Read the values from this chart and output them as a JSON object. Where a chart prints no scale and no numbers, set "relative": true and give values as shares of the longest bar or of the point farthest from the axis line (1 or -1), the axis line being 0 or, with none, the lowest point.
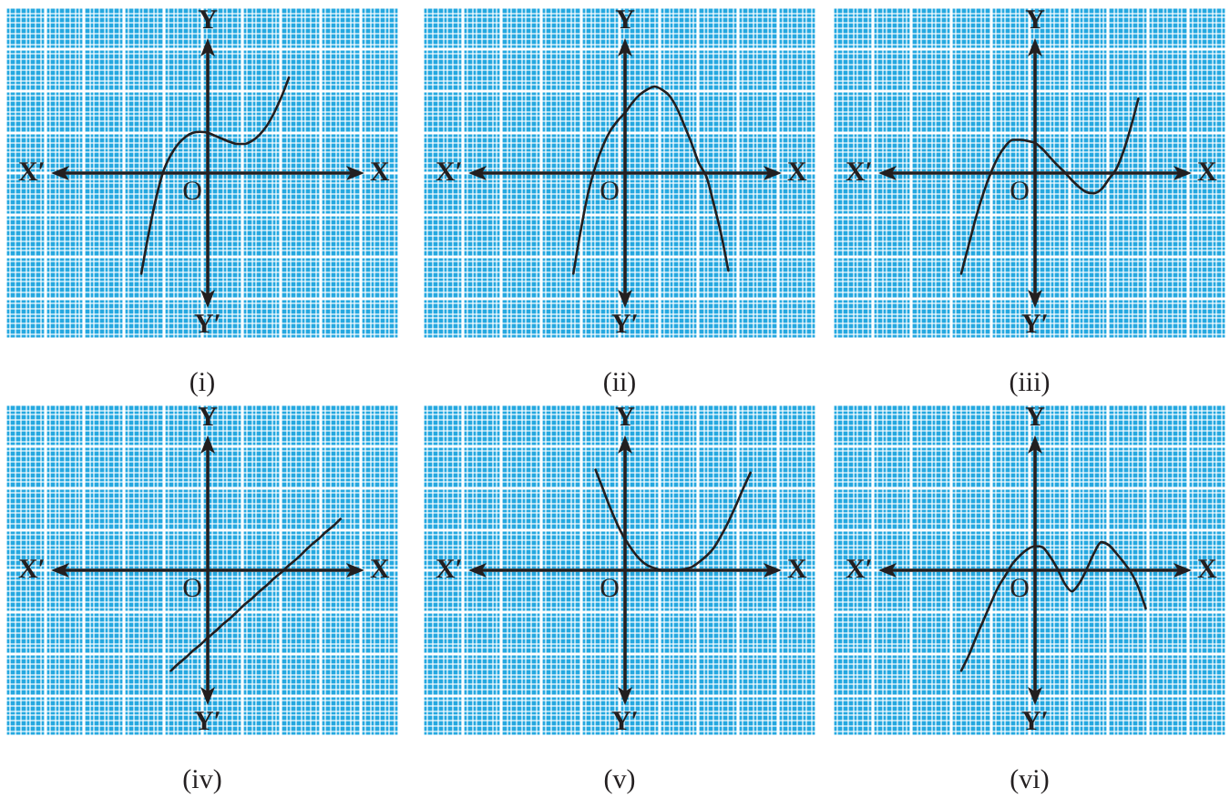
{
  "chart_data": [
    {
      "type": "line",
      "title": "(i)",
      "xlabel": "X",
      "ylabel": "Y",
      "annotations": [
        "X′",
        "Y′",
        "O"
      ],
      "relative": true,
      "grid": true,
      "marker": "none",
      "categories": [
        null,
        null,
        null,
        null,
        null,
        null,
        null,
        null,
        null,
        null,
        null,
        null,
        null,
        null,
        null,
        null,
        null,
        null,
        null,
        null,
        null,
        null,
        null,
        null,
        null,
        null,
        null,
        null,
        null,
        null,
        null,
        null,
        null,
        null,
        null,
        null,
        null,
        null,
        null,
        null,
        null
      ],
      "series": [
        {
          "color": "#231f20",
          "values": [
            null,
            null,
            null,
            null,
            null,
            null,
            null,
            null,
            null,
            null,
            null,
            -1,
            -0.6,
            -0.25,
            0.02,
            0.18,
            0.29,
            0.36,
            0.4,
            0.41,
            0.4,
            0.37,
            0.34,
            0.31,
            0.29,
            0.29,
            0.32,
            0.38,
            0.47,
            0.6,
            0.76,
            0.95,
            null,
            null,
            null,
            null,
            null,
            null,
            null,
            null,
            null
          ]
        }
      ]
    },
    {
      "type": "line",
      "title": "(ii)",
      "xlabel": "X",
      "ylabel": "Y",
      "annotations": [
        "X′",
        "Y′",
        "O"
      ],
      "relative": true,
      "grid": true,
      "marker": "none",
      "categories": [
        null,
        null,
        null,
        null,
        null,
        null,
        null,
        null,
        null,
        null,
        null,
        null,
        null,
        null,
        null,
        null,
        null,
        null,
        null,
        null,
        null,
        null,
        null,
        null,
        null,
        null,
        null,
        null,
        null,
        null,
        null,
        null,
        null,
        null,
        null,
        null,
        null,
        null,
        null,
        null,
        null
      ],
      "series": [
        {
          "color": "#231f20",
          "values": [
            null,
            null,
            null,
            null,
            null,
            null,
            null,
            null,
            null,
            null,
            null,
            null,
            null,
            -1,
            -0.57,
            -0.2,
            0.07,
            0.27,
            0.42,
            0.52,
            0.6,
            0.7,
            0.78,
            0.83,
            0.86,
            0.83,
            0.77,
            0.65,
            0.48,
            0.3,
            0.1,
            -0.03,
            -0.3,
            -0.6,
            -0.97,
            null,
            null,
            null,
            null,
            null,
            null
          ]
        }
      ]
    },
    {
      "type": "line",
      "title": "(iii)",
      "xlabel": "X",
      "ylabel": "Y",
      "annotations": [
        "X′",
        "Y′",
        "O"
      ],
      "relative": true,
      "grid": true,
      "marker": "none",
      "categories": [
        null,
        null,
        null,
        null,
        null,
        null,
        null,
        null,
        null,
        null,
        null,
        null,
        null,
        null,
        null,
        null,
        null,
        null,
        null,
        null,
        null,
        null,
        null,
        null,
        null,
        null,
        null,
        null,
        null,
        null,
        null,
        null,
        null,
        null,
        null,
        null,
        null,
        null,
        null,
        null,
        null
      ],
      "series": [
        {
          "color": "#231f20",
          "values": [
            null,
            null,
            null,
            null,
            null,
            null,
            null,
            null,
            null,
            null,
            -1,
            -0.72,
            -0.44,
            -0.2,
            0,
            0.16,
            0.27,
            0.33,
            0.33,
            0.32,
            0.3,
            0.24,
            0.16,
            0.08,
            0.01,
            -0.07,
            -0.14,
            -0.19,
            -0.2,
            -0.16,
            -0.06,
            0.04,
            0.22,
            0.46,
            0.74,
            null,
            null,
            null,
            null,
            null,
            null
          ]
        }
      ]
    },
    {
      "type": "line",
      "title": "(iv)",
      "xlabel": "X",
      "ylabel": "Y",
      "annotations": [
        "X′",
        "Y′",
        "O"
      ],
      "relative": true,
      "grid": true,
      "marker": "none",
      "categories": [
        null,
        null,
        null,
        null,
        null,
        null,
        null,
        null,
        null,
        null,
        null,
        null,
        null,
        null,
        null,
        null,
        null,
        null,
        null,
        null,
        null,
        null,
        null,
        null,
        null,
        null,
        null,
        null,
        null,
        null,
        null,
        null,
        null,
        null,
        null,
        null,
        null,
        null,
        null,
        null,
        null
      ],
      "series": [
        {
          "color": "#231f20",
          "values": [
            null,
            null,
            null,
            null,
            null,
            null,
            null,
            null,
            null,
            null,
            null,
            null,
            null,
            null,
            null,
            -1,
            -0.93,
            -0.87,
            -0.8,
            -0.74,
            -0.67,
            -0.61,
            -0.54,
            -0.48,
            -0.41,
            -0.34,
            -0.28,
            -0.21,
            -0.15,
            -0.08,
            -0.02,
            0.05,
            0.11,
            0.18,
            0.25,
            0.31,
            0.38,
            0.44,
            0.51,
            null,
            null
          ]
        }
      ]
    },
    {
      "type": "line",
      "title": "(v)",
      "xlabel": "X",
      "ylabel": "Y",
      "annotations": [
        "X′",
        "Y′",
        "O"
      ],
      "relative": true,
      "grid": true,
      "marker": "none",
      "categories": [
        null,
        null,
        null,
        null,
        null,
        null,
        null,
        null,
        null,
        null,
        null,
        null,
        null,
        null,
        null,
        null,
        null,
        null,
        null,
        null,
        null,
        null,
        null,
        null,
        null,
        null,
        null,
        null,
        null,
        null,
        null,
        null,
        null,
        null,
        null,
        null,
        null,
        null,
        null,
        null,
        null
      ],
      "series": [
        {
          "color": "#231f20",
          "values": [
            null,
            null,
            null,
            null,
            null,
            null,
            null,
            null,
            null,
            null,
            null,
            null,
            null,
            null,
            null,
            null,
            1,
            0.81,
            0.62,
            0.45,
            0.31,
            0.2,
            0.11,
            0.05,
            0.02,
            0,
            0,
            0,
            0.01,
            0.03,
            0.08,
            0.14,
            0.22,
            0.34,
            0.48,
            0.64,
            0.81,
            0.97,
            null,
            null,
            null
          ]
        }
      ]
    },
    {
      "type": "line",
      "title": "(vi)",
      "xlabel": "X",
      "ylabel": "Y",
      "annotations": [
        "X′",
        "Y′",
        "O"
      ],
      "relative": true,
      "grid": true,
      "marker": "none",
      "categories": [
        null,
        null,
        null,
        null,
        null,
        null,
        null,
        null,
        null,
        null,
        null,
        null,
        null,
        null,
        null,
        null,
        null,
        null,
        null,
        null,
        null,
        null,
        null,
        null,
        null,
        null,
        null,
        null,
        null,
        null,
        null,
        null,
        null,
        null,
        null,
        null,
        null,
        null,
        null,
        null,
        null
      ],
      "series": [
        {
          "color": "#231f20",
          "values": [
            null,
            null,
            null,
            null,
            null,
            null,
            null,
            null,
            null,
            null,
            -1,
            -0.85,
            -0.67,
            -0.5,
            -0.33,
            -0.17,
            -0.05,
            0.07,
            0.15,
            0.21,
            0.24,
            0.23,
            0.14,
            0.02,
            -0.13,
            -0.21,
            -0.13,
            0.01,
            0.17,
            0.28,
            0.25,
            0.17,
            0.08,
            -0.02,
            -0.17,
            -0.38,
            null,
            null,
            null,
            null,
            null
          ]
        }
      ]
    }
  ]
}
